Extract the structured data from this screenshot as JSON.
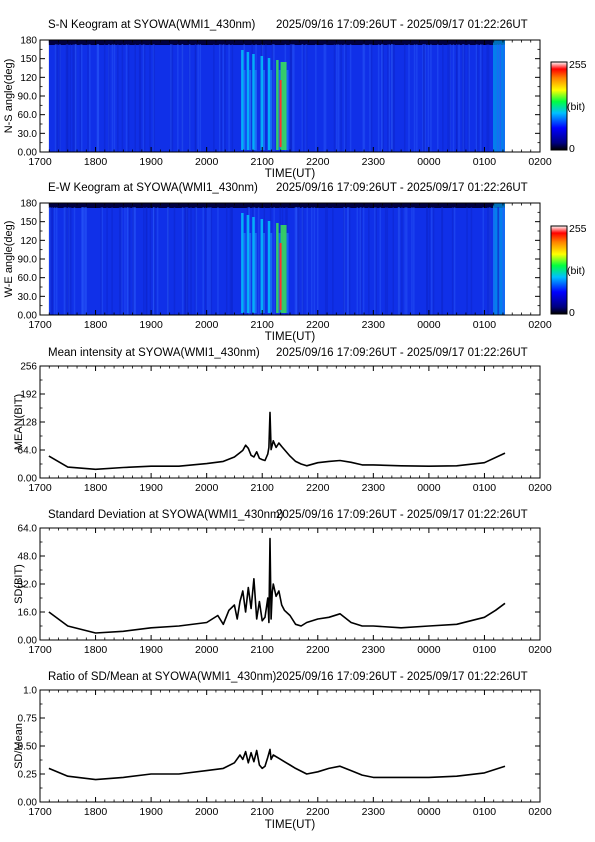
{
  "chart_data": [
    {
      "type": "heatmap",
      "title": "S-N Keogram at SYOWA(WMI1_430nm)",
      "time_range": "2025/09/16 17:09:26UT - 2025/09/17 01:22:26UT",
      "xlabel": "TIME(UT)",
      "ylabel": "N-S angle(deg)",
      "x_ticks": [
        "1700",
        "1800",
        "1900",
        "2000",
        "2100",
        "2200",
        "2300",
        "0000",
        "0100",
        "0200"
      ],
      "y_ticks": [
        "0.00",
        "30.0",
        "60.0",
        "90.0",
        "120",
        "150",
        "180"
      ],
      "ylim": [
        0,
        180
      ],
      "colorbar": {
        "label": "(bit)",
        "min": "0",
        "max": "255"
      },
      "data_coverage_hours": [
        0.16,
        8.37
      ],
      "bright_arcs_hours": [
        3.62,
        3.72,
        3.82,
        3.97,
        4.1,
        4.25,
        4.33
      ]
    },
    {
      "type": "heatmap",
      "title": "E-W Keogram at SYOWA(WMI1_430nm)",
      "time_range": "2025/09/16 17:09:26UT - 2025/09/17 01:22:26UT",
      "xlabel": "TIME(UT)",
      "ylabel": "W-E angle(deg)",
      "x_ticks": [
        "1700",
        "1800",
        "1900",
        "2000",
        "2100",
        "2200",
        "2300",
        "0000",
        "0100",
        "0200"
      ],
      "y_ticks": [
        "0.00",
        "30.0",
        "60.0",
        "90.0",
        "120",
        "150",
        "180"
      ],
      "ylim": [
        0,
        180
      ],
      "colorbar": {
        "label": "(bit)",
        "min": "0",
        "max": "255"
      },
      "data_coverage_hours": [
        0.16,
        8.37
      ],
      "bright_arcs_hours": [
        3.62,
        3.72,
        3.82,
        3.97,
        4.1,
        4.25,
        4.33
      ]
    },
    {
      "type": "line",
      "title": "Mean intensity at SYOWA(WMI1_430nm)",
      "time_range": "2025/09/16 17:09:26UT - 2025/09/17 01:22:26UT",
      "xlabel": "",
      "ylabel": "MEAN(BIT)",
      "x_ticks": [
        "1700",
        "1800",
        "1900",
        "2000",
        "2100",
        "2200",
        "2300",
        "0000",
        "0100",
        "0200"
      ],
      "y_ticks": [
        "0.00",
        "64.0",
        "128",
        "192",
        "256"
      ],
      "ylim": [
        0,
        256
      ],
      "x": [
        0.16,
        0.5,
        1.0,
        1.5,
        2.0,
        2.5,
        3.0,
        3.3,
        3.5,
        3.6,
        3.65,
        3.7,
        3.75,
        3.8,
        3.85,
        3.9,
        3.95,
        4.0,
        4.05,
        4.1,
        4.12,
        4.14,
        4.16,
        4.18,
        4.2,
        4.25,
        4.3,
        4.35,
        4.4,
        4.5,
        4.6,
        4.7,
        4.8,
        5.0,
        5.2,
        5.4,
        5.6,
        5.8,
        6.0,
        6.5,
        7.0,
        7.5,
        8.0,
        8.37
      ],
      "y": [
        50,
        25,
        20,
        24,
        27,
        27,
        33,
        38,
        48,
        58,
        63,
        75,
        68,
        52,
        48,
        60,
        45,
        42,
        40,
        55,
        70,
        150,
        65,
        75,
        85,
        70,
        80,
        72,
        65,
        50,
        38,
        32,
        28,
        35,
        38,
        40,
        36,
        30,
        30,
        28,
        27,
        28,
        35,
        57
      ]
    },
    {
      "type": "line",
      "title": "Standard Deviation at SYOWA(WMI1_430nm)",
      "time_range": "2025/09/16 17:09:26UT - 2025/09/17 01:22:26UT",
      "xlabel": "",
      "ylabel": "SD(BIT)",
      "x_ticks": [
        "1700",
        "1800",
        "1900",
        "2000",
        "2100",
        "2200",
        "2300",
        "0000",
        "0100",
        "0200"
      ],
      "y_ticks": [
        "0.00",
        "16.0",
        "32.0",
        "48.0",
        "64.0"
      ],
      "ylim": [
        0,
        64
      ],
      "x": [
        0.16,
        0.5,
        1.0,
        1.5,
        2.0,
        2.5,
        3.0,
        3.2,
        3.3,
        3.4,
        3.5,
        3.55,
        3.6,
        3.65,
        3.7,
        3.75,
        3.8,
        3.85,
        3.9,
        3.95,
        4.0,
        4.05,
        4.1,
        4.12,
        4.14,
        4.16,
        4.18,
        4.2,
        4.25,
        4.3,
        4.35,
        4.4,
        4.5,
        4.6,
        4.7,
        4.8,
        5.0,
        5.2,
        5.4,
        5.6,
        5.8,
        6.0,
        6.5,
        7.0,
        7.5,
        8.0,
        8.2,
        8.37
      ],
      "y": [
        16,
        8,
        4,
        5,
        7,
        8,
        10,
        14,
        9,
        17,
        20,
        12,
        22,
        28,
        16,
        30,
        18,
        35,
        12,
        22,
        11,
        13,
        24,
        10,
        58,
        12,
        27,
        32,
        25,
        28,
        20,
        17,
        14,
        9,
        8,
        10,
        12,
        13,
        15,
        10,
        8,
        8,
        7,
        8,
        9,
        13,
        17,
        21
      ]
    },
    {
      "type": "line",
      "title": "Ratio of SD/Mean at SYOWA(WMI1_430nm)",
      "time_range": "2025/09/16 17:09:26UT - 2025/09/17 01:22:26UT",
      "xlabel": "TIME(UT)",
      "ylabel": "SD/Mean",
      "x_ticks": [
        "1700",
        "1800",
        "1900",
        "2000",
        "2100",
        "2200",
        "2300",
        "0000",
        "0100",
        "0200"
      ],
      "y_ticks": [
        "0.00",
        "0.25",
        "0.50",
        "0.75",
        "1.0"
      ],
      "ylim": [
        0,
        1.0
      ],
      "x": [
        0.16,
        0.5,
        1.0,
        1.5,
        2.0,
        2.5,
        3.0,
        3.3,
        3.5,
        3.6,
        3.65,
        3.7,
        3.75,
        3.8,
        3.85,
        3.9,
        3.95,
        4.0,
        4.05,
        4.1,
        4.14,
        4.16,
        4.2,
        4.3,
        4.4,
        4.5,
        4.6,
        4.8,
        5.0,
        5.2,
        5.4,
        5.6,
        5.8,
        6.0,
        6.5,
        7.0,
        7.5,
        8.0,
        8.37
      ],
      "y": [
        0.3,
        0.23,
        0.2,
        0.22,
        0.25,
        0.25,
        0.28,
        0.3,
        0.35,
        0.42,
        0.38,
        0.45,
        0.35,
        0.44,
        0.36,
        0.46,
        0.33,
        0.3,
        0.32,
        0.4,
        0.47,
        0.38,
        0.42,
        0.39,
        0.36,
        0.33,
        0.3,
        0.25,
        0.27,
        0.3,
        0.32,
        0.28,
        0.24,
        0.22,
        0.22,
        0.22,
        0.23,
        0.26,
        0.32
      ]
    }
  ]
}
